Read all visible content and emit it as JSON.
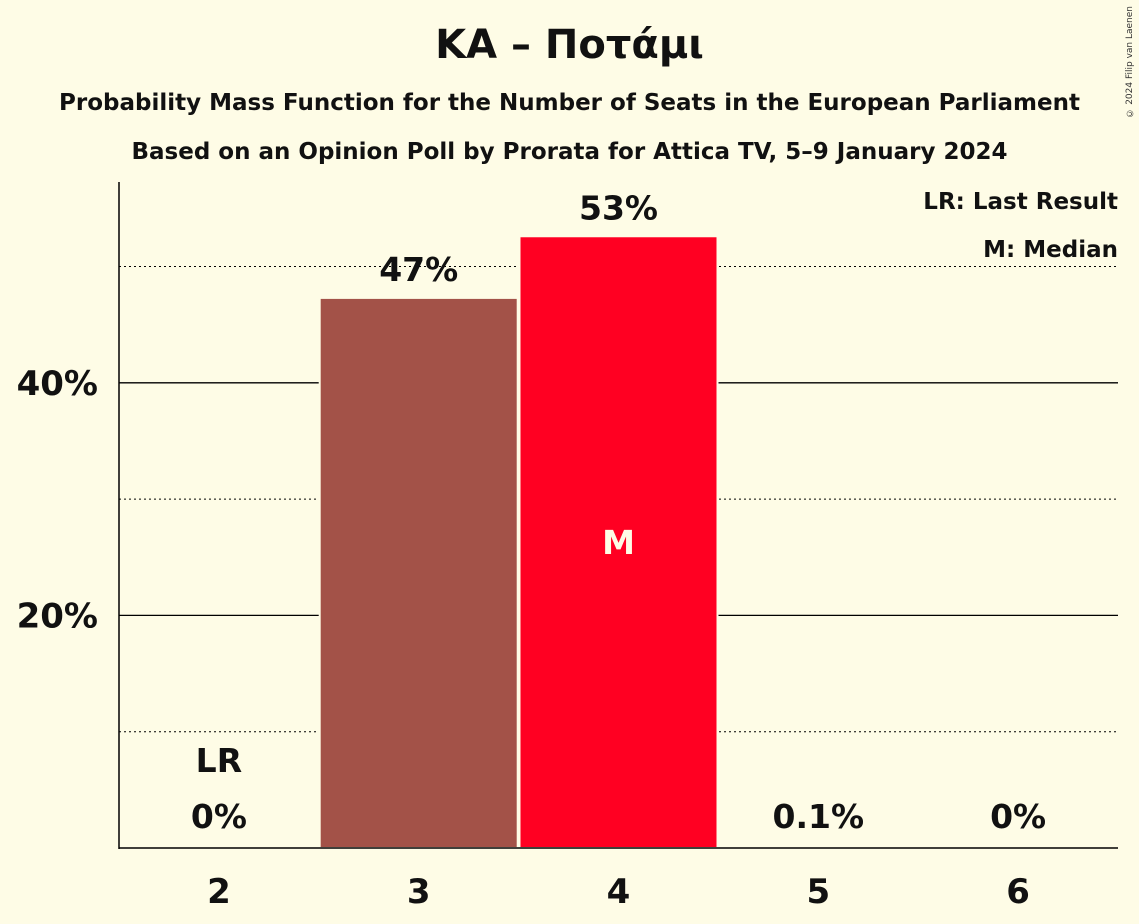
{
  "header": {
    "title": "ΚΑ – Ποτάμι",
    "subtitle1": "Probability Mass Function for the Number of Seats in the European Parliament",
    "subtitle2": "Based on an Opinion Poll by Prorata for Attica TV, 5–9 January 2024",
    "copyright": "© 2024 Filip van Laenen"
  },
  "legend": {
    "last_result": "LR: Last Result",
    "median": "M: Median",
    "placement": "top-right"
  },
  "chart_data": {
    "type": "bar",
    "categories": [
      "2",
      "3",
      "4",
      "5",
      "6"
    ],
    "values": [
      0,
      47.3,
      52.6,
      0.1,
      0
    ],
    "data_labels": [
      "0%",
      "47%",
      "53%",
      "0.1%",
      "0%"
    ],
    "colors": [
      "#A35248",
      "#A35248",
      "#FF0022",
      "#A35248",
      "#A35248"
    ],
    "last_result_index": 0,
    "last_result_marker": "LR",
    "median_index": 2,
    "median_marker": "M",
    "ylim": [
      0,
      57
    ],
    "y_major_ticks": [
      20,
      40
    ],
    "y_tick_labels": [
      "20%",
      "40%"
    ],
    "y_minor_ticks": [
      10,
      30,
      50
    ],
    "grid": true,
    "title": "",
    "xlabel": "",
    "ylabel": ""
  }
}
